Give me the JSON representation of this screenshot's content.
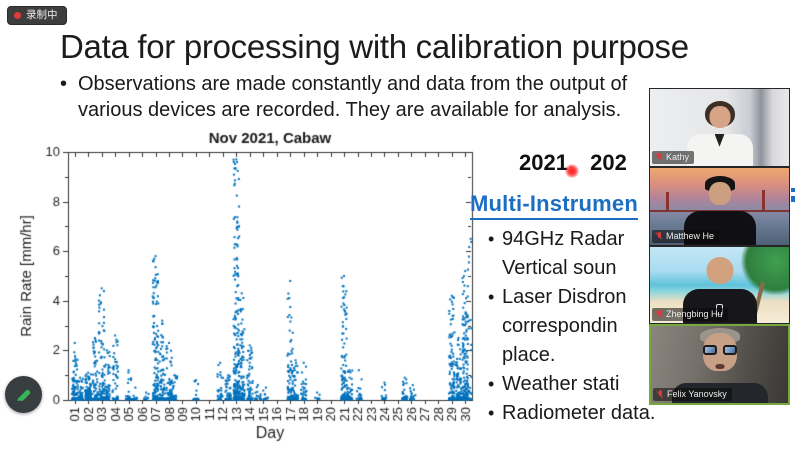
{
  "app": {
    "recording_label": "录制中"
  },
  "slide": {
    "title": "Data for processing with calibration purpose",
    "intro_bullet": {
      "line1": "Observations are made constantly and data from the output of",
      "line2": "various devices are recorded. They are available for analysis."
    },
    "right_panel": {
      "years": "2021, 202",
      "heading": "Multi-Instrumen",
      "bullets": [
        {
          "bullet": true,
          "text": "94GHz Radar"
        },
        {
          "bullet": false,
          "text": "Vertical soun"
        },
        {
          "bullet": true,
          "text": "Laser Disdron"
        },
        {
          "bullet": false,
          "text": "correspondin"
        },
        {
          "bullet": false,
          "text": "place."
        },
        {
          "bullet": true,
          "text": "Weather stati"
        },
        {
          "bullet": true,
          "text": "Radiometer data."
        }
      ]
    }
  },
  "chart_data": {
    "type": "scatter",
    "title": "Nov 2021, Cabaw",
    "xlabel": "Day",
    "ylabel": "Rain Rate [mm/hr]",
    "xlim": [
      0.5,
      30.5
    ],
    "ylim": [
      0,
      10
    ],
    "x_ticks": [
      "01",
      "02",
      "03",
      "04",
      "05",
      "06",
      "07",
      "08",
      "09",
      "10",
      "11",
      "12",
      "13",
      "14",
      "15",
      "16",
      "17",
      "18",
      "19",
      "20",
      "21",
      "22",
      "23",
      "24",
      "25",
      "26",
      "27",
      "28",
      "29",
      "30"
    ],
    "y_ticks": [
      0,
      2,
      4,
      6,
      8,
      10
    ],
    "grid": false,
    "marker_color": "#0072BD",
    "clusters_note": "each cluster = [day, max_rain_rate_mm_hr, approx_point_count]; points concentrate near 0 with spikes to max",
    "clusters": [
      [
        1.0,
        2.3,
        90
      ],
      [
        1.4,
        0.9,
        50
      ],
      [
        2.0,
        1.1,
        110
      ],
      [
        2.5,
        2.5,
        70
      ],
      [
        3.0,
        4.5,
        90
      ],
      [
        3.4,
        2.0,
        60
      ],
      [
        4.0,
        2.6,
        50
      ],
      [
        5.0,
        1.2,
        25
      ],
      [
        5.5,
        0.5,
        12
      ],
      [
        6.3,
        0.3,
        10
      ],
      [
        7.0,
        5.8,
        140
      ],
      [
        7.5,
        3.2,
        80
      ],
      [
        8.0,
        2.3,
        70
      ],
      [
        8.4,
        1.0,
        35
      ],
      [
        10.0,
        0.8,
        14
      ],
      [
        11.8,
        1.5,
        28
      ],
      [
        12.4,
        1.0,
        45
      ],
      [
        13.0,
        9.7,
        220
      ],
      [
        13.4,
        4.3,
        90
      ],
      [
        14.0,
        2.2,
        65
      ],
      [
        14.6,
        0.6,
        18
      ],
      [
        15.2,
        0.5,
        12
      ],
      [
        17.0,
        4.8,
        80
      ],
      [
        17.4,
        1.6,
        45
      ],
      [
        18.0,
        1.5,
        38
      ],
      [
        19.0,
        0.3,
        8
      ],
      [
        21.0,
        5.0,
        100
      ],
      [
        21.4,
        1.2,
        45
      ],
      [
        22.1,
        1.2,
        22
      ],
      [
        24.0,
        0.7,
        16
      ],
      [
        25.5,
        0.9,
        35
      ],
      [
        26.1,
        0.6,
        18
      ],
      [
        29.0,
        4.2,
        110
      ],
      [
        29.5,
        2.5,
        90
      ],
      [
        30.0,
        5.2,
        160
      ],
      [
        30.4,
        6.5,
        25
      ]
    ]
  },
  "participants": [
    {
      "name": "Kathy",
      "muted": true,
      "active": false,
      "scene": "bright-office"
    },
    {
      "name": "Matthew He",
      "muted": true,
      "active": false,
      "scene": "golden-gate-bridge-sunset"
    },
    {
      "name": "Zhengbing Hu",
      "muted": true,
      "active": false,
      "scene": "beach-palm-tree"
    },
    {
      "name": "Felix Yanovsky",
      "muted": true,
      "active": true,
      "scene": "dim-room-closeup"
    }
  ],
  "colors": {
    "accent_blue": "#1b6ec2",
    "scatter_blue": "#0072BD",
    "record_red": "#e03c3c",
    "active_speaker_green": "#76a83e",
    "annotate_green": "#35b558",
    "laser_red": "#ff2020"
  }
}
